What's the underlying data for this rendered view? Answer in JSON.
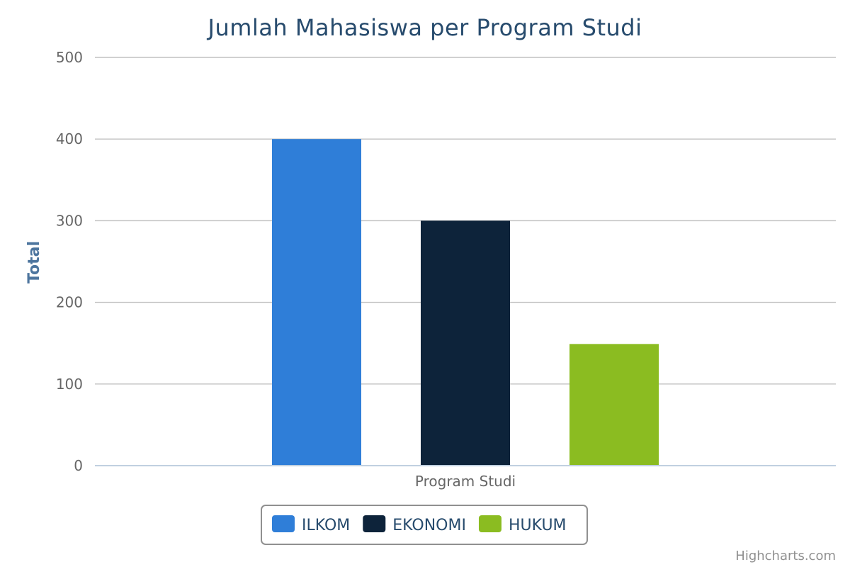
{
  "chart_data": {
    "type": "bar",
    "title": "Jumlah Mahasiswa per Program Studi",
    "xlabel": "",
    "ylabel": "Total",
    "categories": [
      "Program Studi"
    ],
    "ylim": [
      0,
      500
    ],
    "yticks": [
      0,
      100,
      200,
      300,
      400,
      500
    ],
    "grid": true,
    "legend_position": "bottom-center",
    "series": [
      {
        "name": "ILKOM",
        "color": "#2f7ed8",
        "values": [
          400
        ]
      },
      {
        "name": "EKONOMI",
        "color": "#0d233a",
        "values": [
          300
        ]
      },
      {
        "name": "HUKUM",
        "color": "#8bbc21",
        "values": [
          149
        ]
      }
    ]
  },
  "credits": "Highcharts.com"
}
